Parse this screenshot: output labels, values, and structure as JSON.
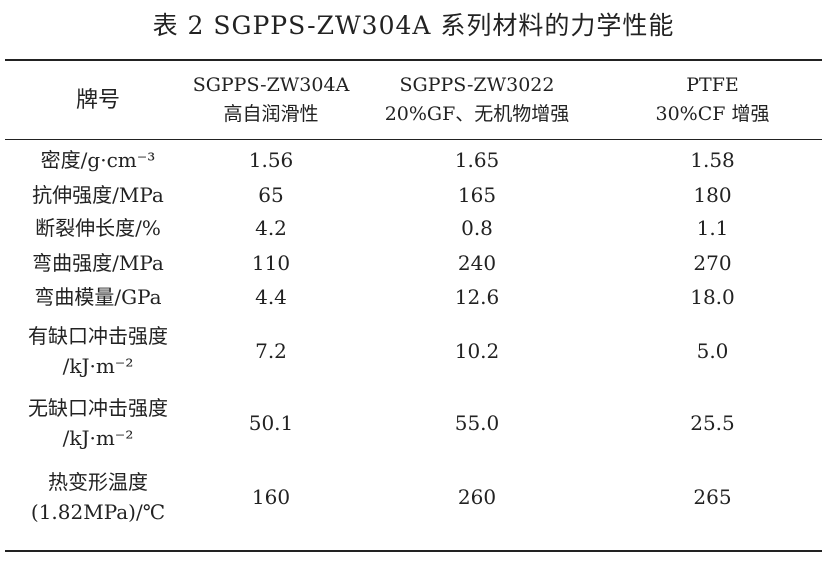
{
  "caption": "表 2 SGPPS-ZW304A 系列材料的力学性能",
  "header": {
    "col0": "牌号",
    "col1_line1": "SGPPS-ZW304A",
    "col1_line2": "高自润滑性",
    "col2_line1": "SGPPS-ZW3022",
    "col2_line2": "20%GF、无机物增强",
    "col3_line1": "PTFE",
    "col3_line2": "30%CF 增强"
  },
  "rows": [
    {
      "label": [
        "密度/g·cm⁻³"
      ],
      "v1": "1.56",
      "v2": "1.65",
      "v3": "1.58"
    },
    {
      "label": [
        "抗伸强度/MPa"
      ],
      "v1": "65",
      "v2": "165",
      "v3": "180"
    },
    {
      "label": [
        "断裂伸长度/%"
      ],
      "v1": "4.2",
      "v2": "0.8",
      "v3": "1.1"
    },
    {
      "label": [
        "弯曲强度/MPa"
      ],
      "v1": "110",
      "v2": "240",
      "v3": "270"
    },
    {
      "label": [
        "弯曲模量/GPa"
      ],
      "v1": "4.4",
      "v2": "12.6",
      "v3": "18.0"
    },
    {
      "label": [
        "有缺口冲击强度",
        "/kJ·m⁻²"
      ],
      "v1": "7.2",
      "v2": "10.2",
      "v3": "5.0"
    },
    {
      "label": [
        "无缺口冲击强度",
        "/kJ·m⁻²"
      ],
      "v1": "50.1",
      "v2": "55.0",
      "v3": "25.5"
    },
    {
      "label": [
        "热变形温度",
        "(1.82MPa)/℃"
      ],
      "v1": "160",
      "v2": "260",
      "v3": "265"
    }
  ]
}
